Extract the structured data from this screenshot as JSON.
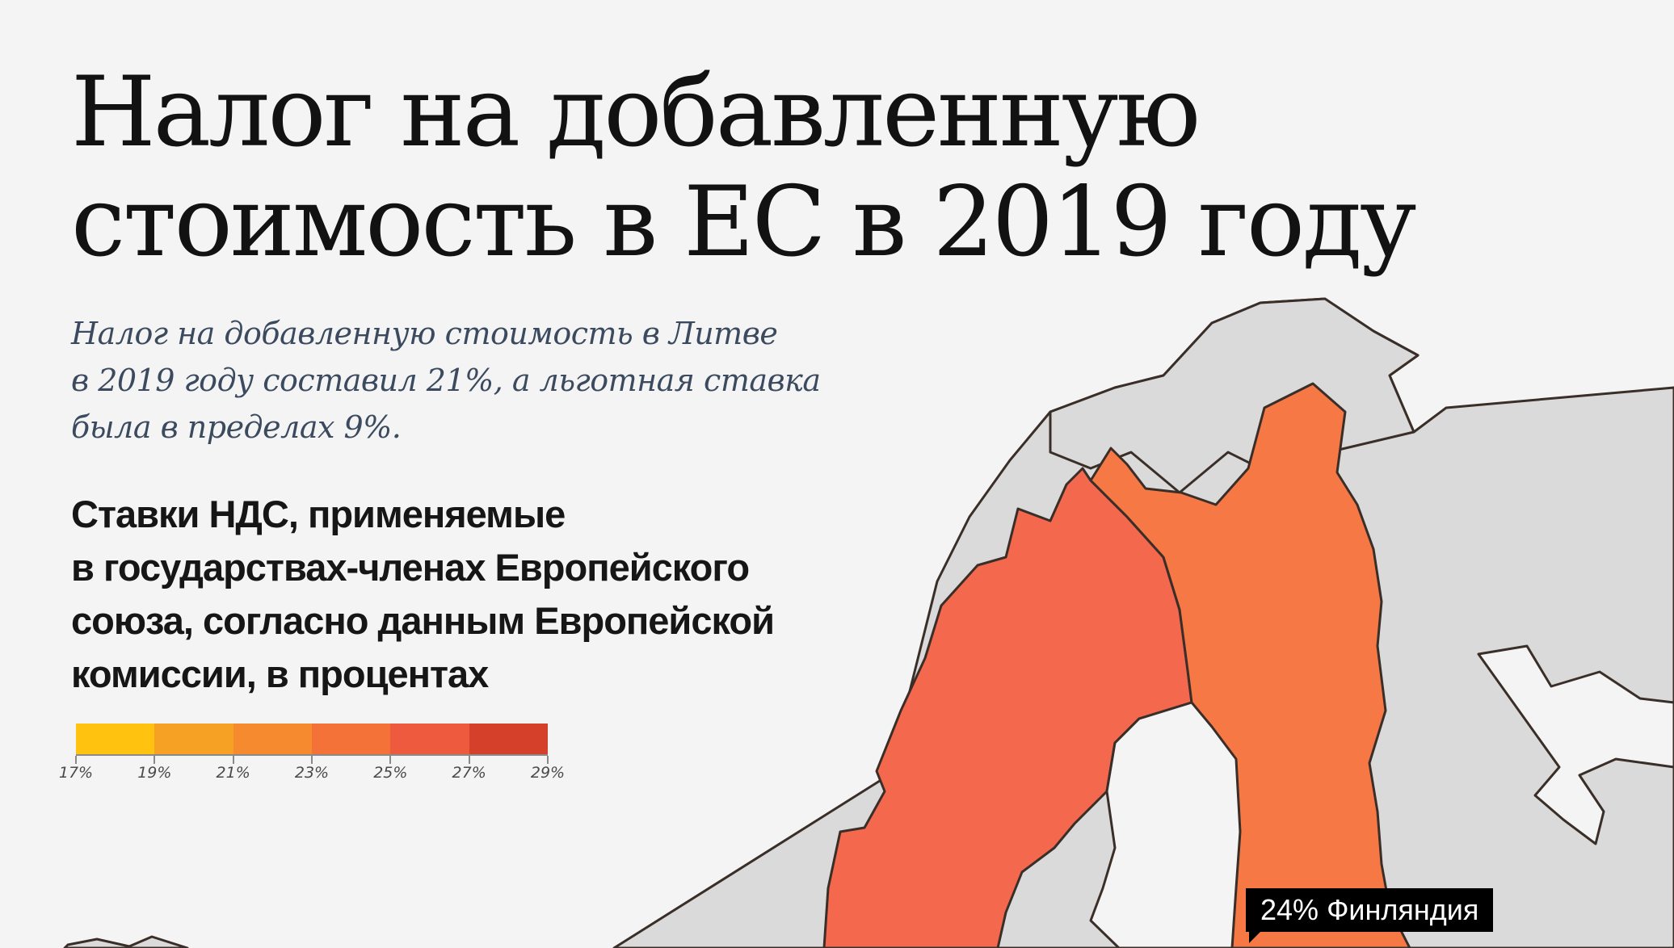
{
  "title": {
    "line1": "Налог на добавленную",
    "line2": "стоимость в ЕС в 2019 году"
  },
  "subtitle": {
    "line1": "Налог на добавленную стоимость в Литве",
    "line2": "в 2019 году составил 21%, а льготная ставка",
    "line3": "была в пределах 9%."
  },
  "legend": {
    "title_line1": "Ставки НДС, применяемые",
    "title_line2": "в государствах-членах Европейского",
    "title_line3": "союза, согласно данным Европейской",
    "title_line4": "комиссии, в процентах",
    "colors": [
      "#ffc20f",
      "#f7a124",
      "#f68a2e",
      "#f47237",
      "#ee5a3e",
      "#d5402a"
    ],
    "ticks": [
      "17%",
      "19%",
      "21%",
      "23%",
      "25%",
      "27%",
      "29%"
    ]
  },
  "map": {
    "colors": {
      "sea": "#f4f4f4",
      "non_eu": "#dadada",
      "border": "#3a2e28",
      "sweden": "#f4684d",
      "finland": "#f57845"
    },
    "regions": [
      {
        "name": "Швеция",
        "vat_percent": 25
      },
      {
        "name": "Финляндия",
        "vat_percent": 24
      }
    ]
  },
  "tooltip": {
    "value": "24%",
    "country": "Финляндия"
  }
}
